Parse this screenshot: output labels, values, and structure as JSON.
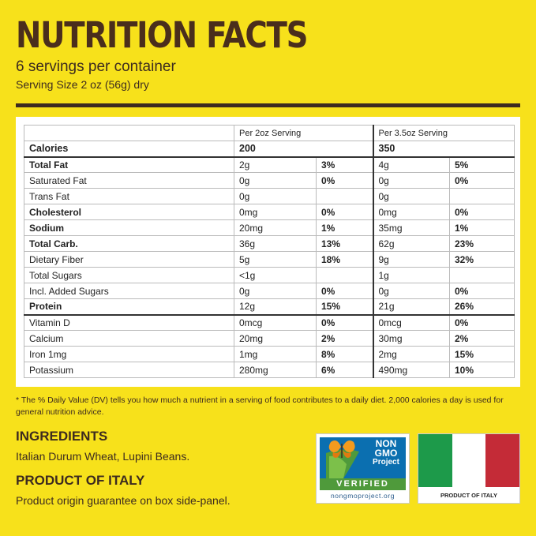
{
  "header": {
    "title": "NUTRITION FACTS",
    "servings": "6 servings per container",
    "serving_size": "Serving Size 2 oz (56g) dry"
  },
  "table": {
    "col_headers": [
      "Per 2oz Serving",
      "Per 3.5oz Serving"
    ],
    "calories": {
      "label": "Calories",
      "v1": "200",
      "v2": "350"
    },
    "rows": [
      {
        "name": "Total Fat",
        "a1": "2g",
        "p1": "3%",
        "a2": "4g",
        "p2": "5%"
      },
      {
        "name": "Saturated Fat",
        "a1": "0g",
        "p1": "0%",
        "a2": "0g",
        "p2": "0%"
      },
      {
        "name": "Trans Fat",
        "a1": "0g",
        "p1": "",
        "a2": "0g",
        "p2": ""
      },
      {
        "name": "Cholesterol",
        "a1": "0mg",
        "p1": "0%",
        "a2": "0mg",
        "p2": "0%"
      },
      {
        "name": "Sodium",
        "a1": "20mg",
        "p1": "1%",
        "a2": "35mg",
        "p2": "1%"
      },
      {
        "name": "Total Carb.",
        "a1": "36g",
        "p1": "13%",
        "a2": "62g",
        "p2": "23%"
      },
      {
        "name": "Dietary Fiber",
        "a1": "5g",
        "p1": "18%",
        "a2": "9g",
        "p2": "32%"
      },
      {
        "name": "Total Sugars",
        "a1": "<1g",
        "p1": "",
        "a2": "1g",
        "p2": ""
      },
      {
        "name": "Incl. Added Sugars",
        "a1": "0g",
        "p1": "0%",
        "a2": "0g",
        "p2": "0%"
      },
      {
        "name": "Protein",
        "a1": "12g",
        "p1": "15%",
        "a2": "21g",
        "p2": "26%"
      },
      {
        "name": "Vitamin D",
        "a1": "0mcg",
        "p1": "0%",
        "a2": "0mcg",
        "p2": "0%"
      },
      {
        "name": "Calcium",
        "a1": "20mg",
        "p1": "2%",
        "a2": "30mg",
        "p2": "2%"
      },
      {
        "name": "Iron 1mg",
        "a1": "1mg",
        "p1": "8%",
        "a2": "2mg",
        "p2": "15%"
      },
      {
        "name": "Potassium",
        "a1": "280mg",
        "p1": "6%",
        "a2": "490mg",
        "p2": "10%"
      }
    ]
  },
  "footnote": "* The % Daily Value (DV) tells you how much a nutrient in a serving of food contributes to a daily diet. 2,000 calories a day is used for general nutrition advice.",
  "ingredients": {
    "heading": "INGREDIENTS",
    "text": "Italian Durum Wheat, Lupini Beans."
  },
  "origin": {
    "heading": "PRODUCT OF ITALY",
    "text": "Product origin guarantee on box side-panel."
  },
  "nongmo_badge": {
    "line1": "NON",
    "line2": "GMO",
    "line3": "Project",
    "verified": "VERIFIED",
    "url": "nongmoproject.org",
    "icon": "butterfly-icon"
  },
  "flag": {
    "label": "PRODUCT OF ITALY",
    "colors": [
      "#1d9a4a",
      "#ffffff",
      "#c42b37"
    ]
  },
  "colors": {
    "background": "#f7e11b",
    "text": "#3d2b1f"
  }
}
